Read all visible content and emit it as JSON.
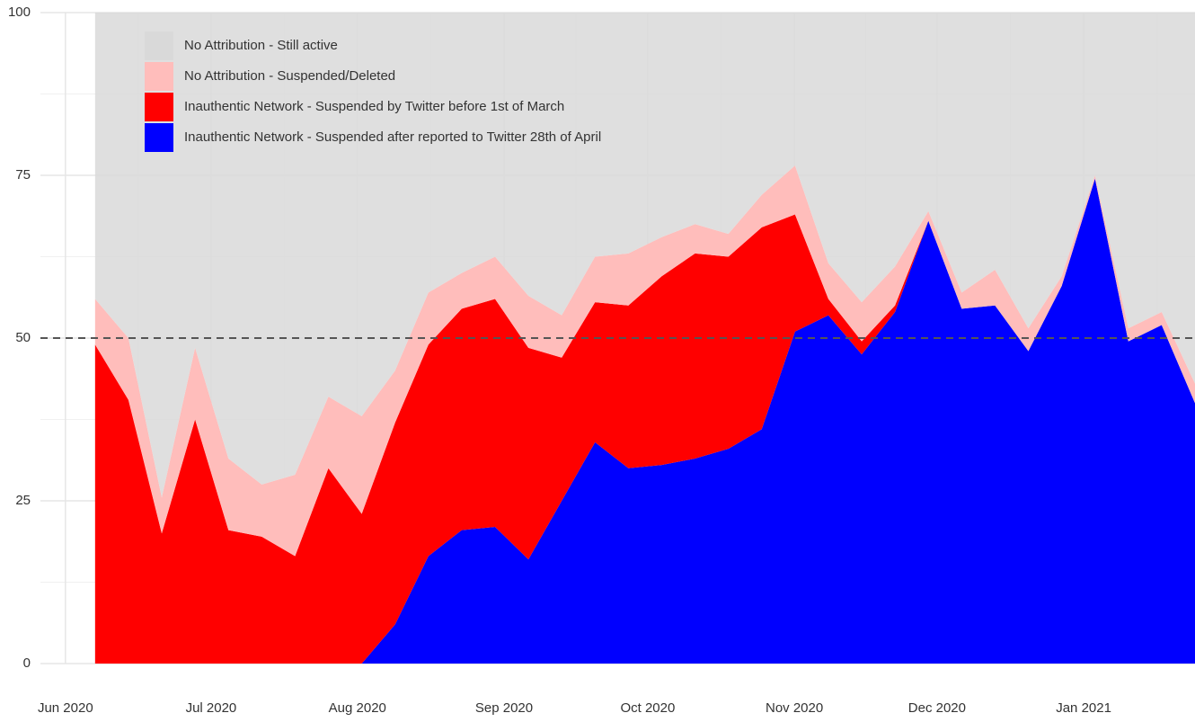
{
  "chart_data": {
    "type": "stacked_area",
    "x": [
      0,
      1,
      2,
      3,
      4,
      5,
      6,
      7,
      8,
      9,
      10,
      11,
      12,
      13,
      14,
      15,
      16,
      17,
      18,
      19,
      20,
      21,
      22,
      23,
      24,
      25,
      26,
      27,
      28,
      29,
      30,
      31,
      32,
      33
    ],
    "series": [
      {
        "name": "No Attribution - Still active",
        "color": "#d9d9d9",
        "values": [
          44,
          50,
          74.5,
          51.5,
          68.5,
          72.5,
          71,
          59,
          62,
          55,
          43,
          40,
          37.5,
          43.5,
          46.5,
          37.5,
          37,
          34.5,
          32.5,
          34,
          28,
          23.5,
          38.5,
          44.5,
          39,
          30.5,
          43,
          39.5,
          48.5,
          40.5,
          25,
          48.5,
          46,
          57
        ]
      },
      {
        "name": "No Attribution - Suspended/Deleted",
        "color": "#ffbdbb",
        "values": [
          7,
          9.5,
          5.5,
          11,
          11,
          8,
          12.5,
          11,
          15,
          8,
          8,
          5.5,
          6.5,
          8,
          6.5,
          7,
          8,
          6,
          4.5,
          3.5,
          5,
          7.5,
          5.5,
          6,
          6,
          1.5,
          2.5,
          5.5,
          3.5,
          1.5,
          0.5,
          2,
          2,
          3
        ]
      },
      {
        "name": "Inauthentic Network - Suspended by Twitter before 1st of March",
        "color": "#ff0000",
        "values": [
          49,
          40.5,
          20,
          37.5,
          20.5,
          19.5,
          16.5,
          30,
          23,
          31,
          32.5,
          34,
          35,
          32.5,
          22,
          21.5,
          25,
          29,
          31.5,
          29.5,
          31,
          18,
          2.5,
          2,
          1,
          0,
          0,
          0,
          0,
          0,
          0,
          0,
          0,
          0
        ]
      },
      {
        "name": "Inauthentic Network - Suspended after reported to Twitter 28th of April",
        "color": "#0000ff",
        "values": [
          0,
          0,
          0,
          0,
          0,
          0,
          0,
          0,
          0,
          6,
          16.5,
          20.5,
          21,
          16,
          25,
          34,
          30,
          30.5,
          31.5,
          33,
          36,
          51,
          53.5,
          47.5,
          54,
          68,
          54.5,
          55,
          48,
          58,
          74.5,
          49.5,
          52,
          40
        ]
      }
    ],
    "xlim": [
      -1.64,
      33
    ],
    "xticks": [
      {
        "value": -0.89,
        "label": "Jun 2020"
      },
      {
        "value": 3.48,
        "label": "Jul 2020"
      },
      {
        "value": 7.87,
        "label": "Aug 2020"
      },
      {
        "value": 12.27,
        "label": "Sep 2020"
      },
      {
        "value": 16.58,
        "label": "Oct 2020"
      },
      {
        "value": 20.98,
        "label": "Nov 2020"
      },
      {
        "value": 25.26,
        "label": "Dec 2020"
      },
      {
        "value": 29.66,
        "label": "Jan 2021"
      }
    ],
    "ylim": [
      0,
      100
    ],
    "yticks": [
      0,
      25,
      50,
      75,
      100
    ],
    "reference_line": 50,
    "grid": true,
    "legend": "top-left"
  }
}
